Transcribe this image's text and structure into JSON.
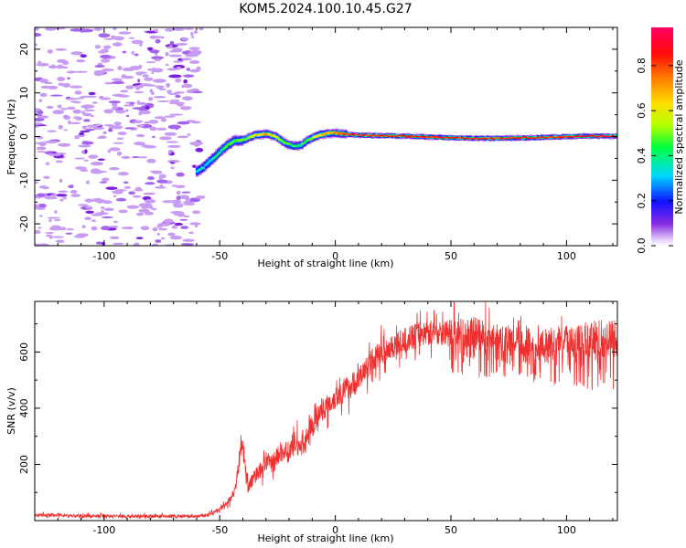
{
  "title": "KOM5.2024.100.10.45.G27",
  "colors": {
    "snr_line": "#ef3030",
    "axis": "#000000",
    "noise": "#c79cf2"
  },
  "chart_data": [
    {
      "type": "heatmap",
      "xlabel": "Height of straight line (km)",
      "ylabel": "Frequency (Hz)",
      "xlim": [
        -130,
        122
      ],
      "ylim": [
        -25,
        25
      ],
      "xticks": [
        -100,
        -50,
        0,
        50,
        100
      ],
      "yticks": [
        -20,
        -10,
        0,
        10,
        20
      ],
      "colorbar": {
        "label": "Normalized spectral amplitude",
        "range": [
          0,
          0.97
        ],
        "ticks": [
          "0.0",
          "0.2",
          "0.4",
          "0.6",
          "0.8"
        ]
      },
      "ridge": {
        "x": [
          -60,
          -57,
          -54,
          -50,
          -47,
          -44,
          -40,
          -35,
          -30,
          -26,
          -22,
          -18,
          -15,
          -12,
          -8,
          -4,
          0,
          5,
          10,
          20,
          30,
          40,
          50,
          60,
          70,
          80,
          90,
          100,
          110,
          122
        ],
        "y": [
          -8.0,
          -7.0,
          -5.5,
          -3.5,
          -2.0,
          -1.0,
          -0.8,
          0.3,
          0.6,
          0.0,
          -1.5,
          -2.2,
          -2.0,
          -0.8,
          0.2,
          0.7,
          0.8,
          0.5,
          0.3,
          0.2,
          0.1,
          -0.1,
          -0.3,
          -0.4,
          -0.4,
          -0.3,
          -0.2,
          0.0,
          0.1,
          0.1
        ],
        "amplitude": [
          0.3,
          0.33,
          0.38,
          0.42,
          0.45,
          0.48,
          0.5,
          0.62,
          0.72,
          0.6,
          0.5,
          0.45,
          0.45,
          0.5,
          0.6,
          0.7,
          0.78,
          0.82,
          0.86,
          0.86,
          0.85,
          0.86,
          0.85,
          0.84,
          0.85,
          0.86,
          0.86,
          0.87,
          0.9,
          0.92
        ]
      }
    },
    {
      "type": "line",
      "xlabel": "Height of straight line (km)",
      "ylabel": "SNR (v/v)",
      "xlim": [
        -130,
        122
      ],
      "ylim": [
        0,
        780
      ],
      "xticks": [
        -100,
        -50,
        0,
        50,
        100
      ],
      "yticks": [
        200,
        400,
        600
      ],
      "series": [
        {
          "x": [
            -130,
            -120,
            -110,
            -100,
            -90,
            -80,
            -70,
            -60,
            -55,
            -50,
            -47,
            -45,
            -43,
            -41,
            -40,
            -38,
            -36,
            -34,
            -32,
            -30,
            -28,
            -25,
            -22,
            -20,
            -18,
            -15,
            -12,
            -10,
            -8,
            -5,
            -2,
            0,
            5,
            10,
            15,
            20,
            25,
            30,
            35,
            40,
            45,
            50,
            55,
            60,
            65,
            70,
            75,
            80,
            85,
            90,
            95,
            100,
            105,
            110,
            115,
            122
          ],
          "values": [
            18,
            20,
            16,
            17,
            15,
            16,
            15,
            15,
            20,
            40,
            60,
            80,
            130,
            240,
            280,
            120,
            140,
            170,
            180,
            210,
            200,
            230,
            250,
            240,
            280,
            260,
            300,
            330,
            370,
            400,
            420,
            440,
            470,
            500,
            560,
            600,
            620,
            640,
            660,
            670,
            670,
            665,
            665,
            665,
            660,
            650,
            645,
            640,
            630,
            630,
            635,
            640,
            640,
            645,
            650,
            650
          ],
          "noise_amplitude": [
            12,
            12,
            12,
            12,
            12,
            12,
            12,
            12,
            12,
            15,
            20,
            25,
            40,
            60,
            60,
            50,
            50,
            60,
            60,
            70,
            70,
            70,
            70,
            80,
            80,
            80,
            80,
            80,
            80,
            80,
            80,
            90,
            90,
            90,
            90,
            90,
            90,
            90,
            90,
            90,
            90,
            100,
            110,
            120,
            110,
            100,
            100,
            100,
            100,
            110,
            110,
            110,
            120,
            130,
            130,
            140
          ]
        }
      ]
    }
  ]
}
